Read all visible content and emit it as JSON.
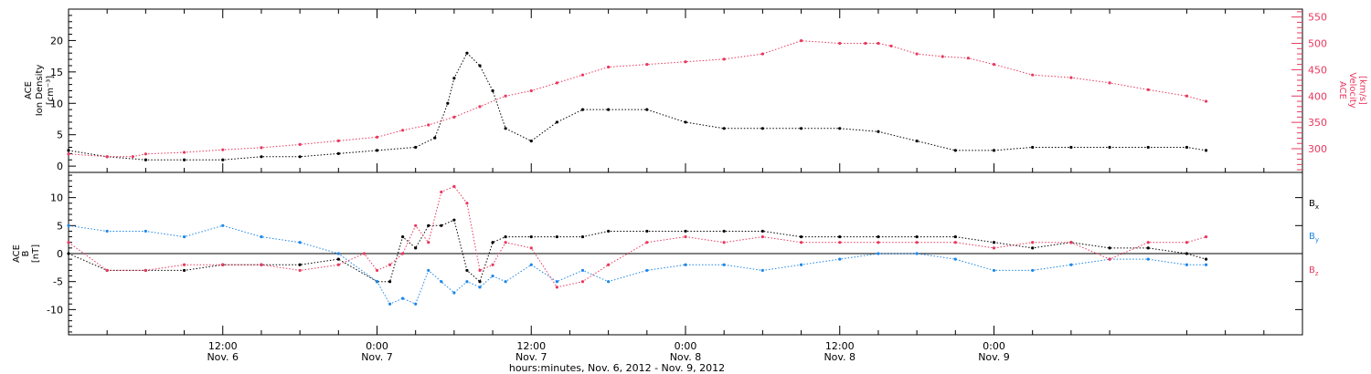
{
  "title": "",
  "colors": {
    "black": "#000000",
    "red": "#e8385e",
    "blue": "#1c86e8"
  },
  "chart_data": [
    {
      "type": "scatter",
      "panel": "top",
      "ylabel_left": [
        "ACE",
        "Ion Density",
        "[cm⁻³]"
      ],
      "ylabel_right": [
        "ACE",
        "Velocity",
        "[km/s]"
      ],
      "ylim_left": [
        -1,
        25
      ],
      "yticks_left": [
        0,
        5,
        10,
        15,
        20
      ],
      "ylim_right": [
        255,
        565
      ],
      "yticks_right": [
        300,
        350,
        400,
        450,
        500,
        550
      ],
      "series": [
        {
          "color": "black",
          "axis": "left",
          "x": [
            0,
            3,
            6,
            9,
            12,
            15,
            18,
            21,
            24,
            27,
            28.5,
            29.5,
            30,
            31,
            32,
            33,
            34,
            36,
            38,
            40,
            42,
            45,
            48,
            51,
            54,
            57,
            60,
            63,
            66,
            69,
            72,
            75,
            78,
            81,
            84,
            87,
            88.5
          ],
          "y": [
            2.5,
            1.5,
            1,
            1,
            1,
            1.5,
            1.5,
            2,
            2.5,
            3,
            4.5,
            10,
            14,
            18,
            16,
            12,
            6,
            4,
            7,
            9,
            9,
            9,
            7,
            6,
            6,
            6,
            6,
            5.5,
            4,
            2.5,
            2.5,
            3,
            3,
            3,
            3,
            3,
            2.5
          ]
        },
        {
          "color": "red",
          "axis": "right",
          "x": [
            0,
            3,
            5,
            6,
            9,
            12,
            15,
            18,
            21,
            24,
            26,
            28,
            30,
            32,
            34,
            36,
            38,
            40,
            42,
            45,
            48,
            51,
            54,
            57,
            60,
            62,
            63,
            64,
            66,
            68,
            70,
            72,
            75,
            78,
            81,
            84,
            87,
            88.5
          ],
          "y": [
            290,
            285,
            285,
            290,
            293,
            298,
            302,
            308,
            315,
            322,
            335,
            345,
            360,
            380,
            400,
            410,
            425,
            440,
            455,
            460,
            465,
            470,
            480,
            505,
            500,
            500,
            500,
            495,
            480,
            475,
            472,
            460,
            440,
            435,
            425,
            412,
            400,
            390
          ]
        }
      ]
    },
    {
      "type": "scatter",
      "panel": "bottom",
      "ylabel_left": [
        "ACE",
        "B",
        "[nT]"
      ],
      "ylim": [
        -14.5,
        14.5
      ],
      "yticks": [
        -10,
        -5,
        0,
        5,
        10
      ],
      "x_range_hours": [
        0,
        96
      ],
      "xticks": [
        {
          "h": 12,
          "time": "12:00",
          "date": "Nov. 6"
        },
        {
          "h": 24,
          "time": "0:00",
          "date": "Nov. 7"
        },
        {
          "h": 36,
          "time": "12:00",
          "date": "Nov. 7"
        },
        {
          "h": 48,
          "time": "0:00",
          "date": "Nov. 8"
        },
        {
          "h": 60,
          "time": "12:00",
          "date": "Nov. 8"
        },
        {
          "h": 72,
          "time": "0:00",
          "date": "Nov. 9"
        }
      ],
      "xlabel": "hours:minutes, Nov.  6, 2012 - Nov.  9, 2012",
      "series": [
        {
          "name": "Bx",
          "color": "black",
          "x": [
            0,
            3,
            6,
            9,
            12,
            15,
            18,
            21,
            24,
            25,
            26,
            27,
            28,
            29,
            30,
            31,
            32,
            33,
            34,
            36,
            38,
            40,
            42,
            45,
            48,
            51,
            54,
            57,
            60,
            63,
            66,
            69,
            72,
            75,
            78,
            81,
            84,
            87,
            88.5
          ],
          "y": [
            0,
            -3,
            -3,
            -3,
            -2,
            -2,
            -2,
            -1,
            -5,
            -5,
            3,
            1,
            5,
            5,
            6,
            -3,
            -5,
            2,
            3,
            3,
            3,
            3,
            4,
            4,
            4,
            4,
            4,
            3,
            3,
            3,
            3,
            3,
            2,
            1,
            2,
            1,
            1,
            0,
            -1
          ]
        },
        {
          "name": "By",
          "color": "blue",
          "x": [
            0,
            3,
            6,
            9,
            12,
            15,
            18,
            21,
            24,
            25,
            26,
            27,
            28,
            29,
            30,
            31,
            32,
            33,
            34,
            36,
            38,
            40,
            42,
            45,
            48,
            51,
            54,
            57,
            60,
            63,
            66,
            69,
            72,
            75,
            78,
            81,
            84,
            87,
            88.5
          ],
          "y": [
            5,
            4,
            4,
            3,
            5,
            3,
            2,
            0,
            -5,
            -9,
            -8,
            -9,
            -3,
            -5,
            -7,
            -5,
            -6,
            -4,
            -5,
            -2,
            -5,
            -3,
            -5,
            -3,
            -2,
            -2,
            -3,
            -2,
            -1,
            0,
            0,
            -1,
            -3,
            -3,
            -2,
            -1,
            -1,
            -2,
            -2
          ]
        },
        {
          "name": "Bz",
          "color": "red",
          "x": [
            0,
            3,
            6,
            9,
            12,
            15,
            18,
            21,
            23,
            24,
            25,
            26,
            27,
            28,
            29,
            30,
            31,
            32,
            33,
            34,
            36,
            38,
            40,
            42,
            45,
            48,
            51,
            54,
            57,
            60,
            63,
            66,
            69,
            72,
            75,
            78,
            81,
            84,
            87,
            88.5
          ],
          "y": [
            2,
            -3,
            -3,
            -2,
            -2,
            -2,
            -3,
            -2,
            0,
            -3,
            -2,
            0,
            5,
            2,
            11,
            12,
            9,
            -3,
            -2,
            2,
            1,
            -6,
            -5,
            -2,
            2,
            3,
            2,
            3,
            2,
            2,
            2,
            2,
            2,
            1,
            2,
            2,
            -1,
            2,
            2,
            3
          ]
        }
      ],
      "legend": [
        "Bx",
        "By",
        "Bz"
      ]
    }
  ]
}
